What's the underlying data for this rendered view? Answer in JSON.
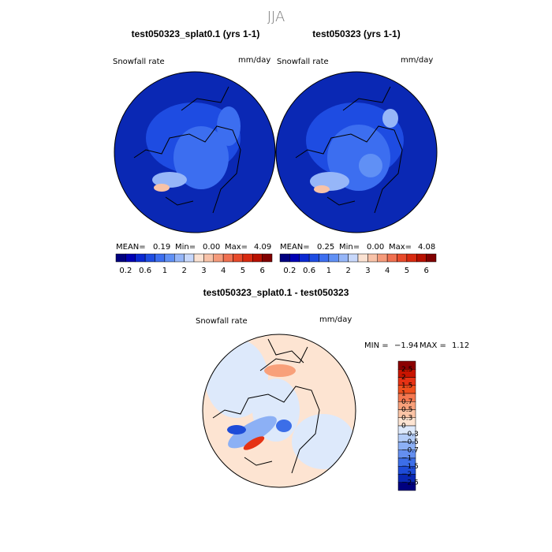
{
  "title": "JJA",
  "panels": [
    {
      "title": "test050323_splat0.1 (yrs 1-1)",
      "variable": "Snowfall rate",
      "units": "mm/day",
      "stats": {
        "mean_label": "MEAN=",
        "mean": "0.19",
        "min_label": "Min=",
        "min": "0.00",
        "max_label": "Max=",
        "max": "4.09"
      }
    },
    {
      "title": "test050323 (yrs 1-1)",
      "variable": "Snowfall rate",
      "units": "mm/day",
      "stats": {
        "mean_label": "MEAN=",
        "mean": "0.25",
        "min_label": "Min=",
        "min": "0.00",
        "max_label": "Max=",
        "max": "4.08"
      }
    }
  ],
  "colorbar": {
    "labels": [
      "0.2",
      "0.6",
      "1",
      "2",
      "3",
      "4",
      "5",
      "6"
    ],
    "colors": [
      "#00007f",
      "#0000b4",
      "#0a28d2",
      "#1e4ce2",
      "#3c6ef0",
      "#6090f5",
      "#96b6f8",
      "#c8d8fb",
      "#fbe2d2",
      "#f8c2a8",
      "#f59a7a",
      "#f07050",
      "#e84a2a",
      "#d82a10",
      "#b81000",
      "#800000"
    ]
  },
  "difference": {
    "title": "test050323_splat0.1 - test050323",
    "variable": "Snowfall rate",
    "units": "mm/day",
    "stats": {
      "min_label": "MIN =",
      "min": "−1.94",
      "max_label": "MAX =",
      "max": "1.12"
    },
    "colorbar": {
      "labels": [
        "2.5",
        "2",
        "1.5",
        "1",
        "0.7",
        "0.5",
        "0.3",
        "0",
        "−0.3",
        "−0.5",
        "−0.7",
        "−1",
        "−1.5",
        "−2",
        "−2.5"
      ],
      "colors": [
        "#8b0000",
        "#c81400",
        "#e63214",
        "#f0501e",
        "#f57850",
        "#f8a07a",
        "#fbc4a6",
        "#fde4d2",
        "#dde9fb",
        "#b4cdf8",
        "#8cb0f5",
        "#648ff0",
        "#3c6ee8",
        "#1e4cd8",
        "#0a28b4",
        "#00007f"
      ]
    }
  }
}
